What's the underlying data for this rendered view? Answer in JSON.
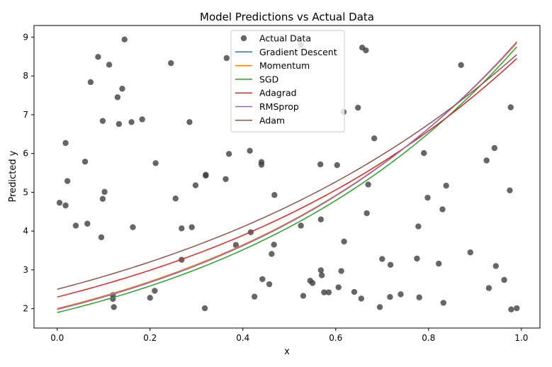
{
  "chart_data": {
    "type": "line",
    "title": "Model Predictions vs Actual Data",
    "xlabel": "x",
    "ylabel": "Predicted y",
    "xlim": [
      -0.05,
      1.04
    ],
    "ylim": [
      1.5,
      9.3
    ],
    "xticks": [
      0.0,
      0.2,
      0.4,
      0.6,
      0.8,
      1.0
    ],
    "xtick_labels": [
      "0.0",
      "0.2",
      "0.4",
      "0.6",
      "0.8",
      "1.0"
    ],
    "yticks": [
      2,
      3,
      4,
      5,
      6,
      7,
      8,
      9
    ],
    "ytick_labels": [
      "2",
      "3",
      "4",
      "5",
      "6",
      "7",
      "8",
      "9"
    ],
    "grid": false,
    "legend_position": "top-center",
    "scatter": {
      "name": "Actual Data",
      "color": "#404040",
      "points": [
        [
          0.005,
          4.73
        ],
        [
          0.018,
          6.27
        ],
        [
          0.018,
          4.66
        ],
        [
          0.022,
          5.29
        ],
        [
          0.04,
          4.14
        ],
        [
          0.06,
          5.79
        ],
        [
          0.065,
          4.19
        ],
        [
          0.072,
          7.84
        ],
        [
          0.088,
          8.49
        ],
        [
          0.095,
          3.84
        ],
        [
          0.098,
          6.84
        ],
        [
          0.098,
          4.83
        ],
        [
          0.102,
          5.01
        ],
        [
          0.112,
          8.29
        ],
        [
          0.12,
          2.25
        ],
        [
          0.12,
          2.35
        ],
        [
          0.122,
          2.04
        ],
        [
          0.13,
          7.45
        ],
        [
          0.133,
          6.76
        ],
        [
          0.14,
          7.67
        ],
        [
          0.145,
          8.94
        ],
        [
          0.16,
          6.81
        ],
        [
          0.163,
          4.1
        ],
        [
          0.183,
          6.88
        ],
        [
          0.2,
          2.28
        ],
        [
          0.21,
          2.46
        ],
        [
          0.212,
          5.75
        ],
        [
          0.245,
          8.33
        ],
        [
          0.255,
          4.84
        ],
        [
          0.268,
          4.07
        ],
        [
          0.268,
          3.26
        ],
        [
          0.285,
          6.81
        ],
        [
          0.29,
          4.1
        ],
        [
          0.298,
          5.18
        ],
        [
          0.318,
          2.01
        ],
        [
          0.32,
          5.45
        ],
        [
          0.32,
          5.43
        ],
        [
          0.363,
          5.34
        ],
        [
          0.365,
          8.46
        ],
        [
          0.37,
          5.99
        ],
        [
          0.385,
          3.64
        ],
        [
          0.415,
          6.07
        ],
        [
          0.417,
          3.97
        ],
        [
          0.425,
          2.31
        ],
        [
          0.44,
          5.78
        ],
        [
          0.44,
          5.71
        ],
        [
          0.442,
          2.76
        ],
        [
          0.457,
          2.63
        ],
        [
          0.462,
          3.41
        ],
        [
          0.467,
          3.65
        ],
        [
          0.468,
          4.93
        ],
        [
          0.525,
          8.8
        ],
        [
          0.525,
          4.14
        ],
        [
          0.53,
          2.33
        ],
        [
          0.545,
          2.72
        ],
        [
          0.55,
          2.66
        ],
        [
          0.567,
          5.72
        ],
        [
          0.568,
          4.3
        ],
        [
          0.568,
          2.99
        ],
        [
          0.57,
          2.86
        ],
        [
          0.575,
          2.42
        ],
        [
          0.585,
          2.42
        ],
        [
          0.603,
          5.7
        ],
        [
          0.606,
          2.55
        ],
        [
          0.612,
          2.97
        ],
        [
          0.617,
          7.07
        ],
        [
          0.618,
          3.73
        ],
        [
          0.64,
          2.43
        ],
        [
          0.648,
          7.18
        ],
        [
          0.655,
          2.26
        ],
        [
          0.657,
          8.73
        ],
        [
          0.665,
          8.66
        ],
        [
          0.667,
          4.46
        ],
        [
          0.67,
          5.2
        ],
        [
          0.683,
          6.39
        ],
        [
          0.695,
          2.04
        ],
        [
          0.7,
          3.28
        ],
        [
          0.717,
          2.3
        ],
        [
          0.718,
          3.13
        ],
        [
          0.74,
          2.37
        ],
        [
          0.775,
          3.29
        ],
        [
          0.778,
          4.12
        ],
        [
          0.78,
          2.29
        ],
        [
          0.79,
          6.01
        ],
        [
          0.798,
          4.86
        ],
        [
          0.822,
          3.16
        ],
        [
          0.83,
          4.56
        ],
        [
          0.832,
          2.15
        ],
        [
          0.838,
          5.17
        ],
        [
          0.87,
          8.28
        ],
        [
          0.89,
          3.45
        ],
        [
          0.925,
          5.82
        ],
        [
          0.93,
          2.53
        ],
        [
          0.942,
          6.14
        ],
        [
          0.945,
          3.1
        ],
        [
          0.963,
          2.74
        ],
        [
          0.975,
          5.05
        ],
        [
          0.977,
          7.19
        ],
        [
          0.978,
          1.98
        ],
        [
          0.99,
          2.01
        ]
      ]
    },
    "series": [
      {
        "name": "Gradient Descent",
        "color": "#1f77b4",
        "y0": 2.0,
        "ymax": 8.85,
        "k": 1.51
      },
      {
        "name": "Momentum",
        "color": "#ff7f0e",
        "y0": 2.0,
        "ymax": 8.85,
        "k": 1.51
      },
      {
        "name": "SGD",
        "color": "#2ca02c",
        "y0": 1.9,
        "ymax": 8.75,
        "k": 1.55
      },
      {
        "name": "Adagrad",
        "color": "#d62728",
        "y0": 2.3,
        "ymax": 8.45,
        "k": 1.315
      },
      {
        "name": "RMSprop",
        "color": "#9467bd",
        "y0": 1.98,
        "ymax": 8.88,
        "k": 1.53
      },
      {
        "name": "Adam",
        "color": "#8c564b",
        "y0": 2.5,
        "ymax": 8.55,
        "k": 1.24
      }
    ],
    "x_range": [
      0.0,
      0.99
    ]
  }
}
